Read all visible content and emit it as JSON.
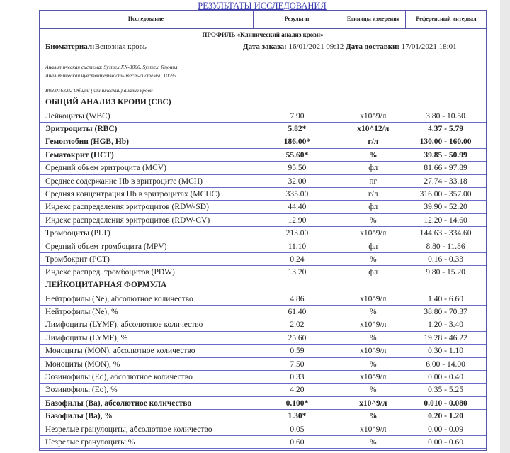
{
  "title": "РЕЗУЛЬТАТЫ ИССЛЕДОВАНИЯ",
  "columns": [
    "Исследование",
    "Результат",
    "Единицы измерения",
    "Референсный интервал"
  ],
  "profile": "ПРОФИЛЬ «Клинический анализ крови»",
  "biomaterial_label": "Биоматериал:",
  "biomaterial": "Венозная кровь",
  "order_date_label": "Дата заказа:",
  "order_date": "16/01/2021 09:12",
  "delivery_date_label": "Дата доставки:",
  "delivery_date": "17/01/2021 18:01",
  "analytic_system": "Аналитическая система: Sysmex XN-3000, Sysmex, Япония",
  "sensitivity": "Аналитическая чувствительность тест-системы: 100%",
  "code": "B03.016.002 Общий (клинический) анализ крови",
  "sections": [
    {
      "title": "ОБЩИЙ АНАЛИЗ КРОВИ (CBC)",
      "rows": [
        {
          "name": "Лейкоциты (WBC)",
          "value": "7.90",
          "unit": "x10^9/л",
          "ref": "3.80 - 10.50",
          "flag": false
        },
        {
          "name": "Эритроциты (RBC)",
          "value": "5.82*",
          "unit": "x10^12/л",
          "ref": "4.37 - 5.79",
          "flag": true
        },
        {
          "name": "Гемоглобин (HGB, Hb)",
          "value": "186.00*",
          "unit": "г/л",
          "ref": "130.00 - 160.00",
          "flag": true
        },
        {
          "name": "Гематокрит (HCT)",
          "value": "55.60*",
          "unit": "%",
          "ref": "39.85 - 50.99",
          "flag": true
        },
        {
          "name": "Средний объем эритроцита (MCV)",
          "value": "95.50",
          "unit": "фл",
          "ref": "81.66 - 97.89",
          "flag": false
        },
        {
          "name": "Среднее содержание Hb в эритроците (MCH)",
          "value": "32.00",
          "unit": "пг",
          "ref": "27.74 - 33.18",
          "flag": false
        },
        {
          "name": "Средняя концентрация Hb в эритроцитах (MCHC)",
          "value": "335.00",
          "unit": "г/л",
          "ref": "316.00 - 357.00",
          "flag": false
        },
        {
          "name": "Индекс распределения эритроцитов (RDW-SD)",
          "value": "44.40",
          "unit": "фл",
          "ref": "39.90 - 52.20",
          "flag": false
        },
        {
          "name": "Индекс распределения эритроцитов (RDW-CV)",
          "value": "12.90",
          "unit": "%",
          "ref": "12.20 - 14.60",
          "flag": false
        },
        {
          "name": "Тромбоциты (PLT)",
          "value": "213.00",
          "unit": "x10^9/л",
          "ref": "144.63 - 334.60",
          "flag": false
        },
        {
          "name": "Средний объем тромбоцита (MPV)",
          "value": "11.10",
          "unit": "фл",
          "ref": "8.80 - 11.86",
          "flag": false
        },
        {
          "name": "Тромбокрит (PCT)",
          "value": "0.24",
          "unit": "%",
          "ref": "0.16 - 0.33",
          "flag": false
        },
        {
          "name": "Индекс распред. тромбоцитов (PDW)",
          "value": "13.20",
          "unit": "фл",
          "ref": "9.80 - 15.20",
          "flag": false
        }
      ]
    },
    {
      "title": "ЛЕЙКОЦИТАРНАЯ ФОРМУЛА",
      "rows": [
        {
          "name": "Нейтрофилы (Ne), абсолютное количество",
          "value": "4.86",
          "unit": "x10^9/л",
          "ref": "1.40 - 6.60",
          "flag": false
        },
        {
          "name": "Нейтрофилы (Ne), %",
          "value": "61.40",
          "unit": "%",
          "ref": "38.80 - 70.37",
          "flag": false
        },
        {
          "name": "Лимфоциты (LYMF), абсолютное количество",
          "value": "2.02",
          "unit": "x10^9/л",
          "ref": "1.20 - 3.40",
          "flag": false
        },
        {
          "name": "Лимфоциты (LYMF), %",
          "value": "25.60",
          "unit": "%",
          "ref": "19.28 - 46.22",
          "flag": false
        },
        {
          "name": "Моноциты (MON), абсолютное количество",
          "value": "0.59",
          "unit": "x10^9/л",
          "ref": "0.30 - 1.10",
          "flag": false
        },
        {
          "name": "Моноциты (MON), %",
          "value": "7.50",
          "unit": "%",
          "ref": "6.00 - 14.00",
          "flag": false
        },
        {
          "name": "Эозинофилы (Eo), абсолютное количество",
          "value": "0.33",
          "unit": "x10^9/л",
          "ref": "0.00 - 0.40",
          "flag": false
        },
        {
          "name": "Эозинофилы (Eo), %",
          "value": "4.20",
          "unit": "%",
          "ref": "0.35 - 5.25",
          "flag": false
        },
        {
          "name": "Базофилы (Ba), абсолютное количество",
          "value": "0.100*",
          "unit": "x10^9/л",
          "ref": "0.010 - 0.080",
          "flag": true
        },
        {
          "name": "Базофилы (Ba), %",
          "value": "1.30*",
          "unit": "%",
          "ref": "0.20 - 1.20",
          "flag": true
        },
        {
          "name": "Незрелые гранулоциты, абсолютное количество",
          "value": "0.05",
          "unit": "x10^9/л",
          "ref": "0.00 - 0.09",
          "flag": false
        },
        {
          "name": "Незрелые гранулоциты %",
          "value": "0.60",
          "unit": "%",
          "ref": "0.00 - 0.60",
          "flag": false
        }
      ]
    }
  ]
}
